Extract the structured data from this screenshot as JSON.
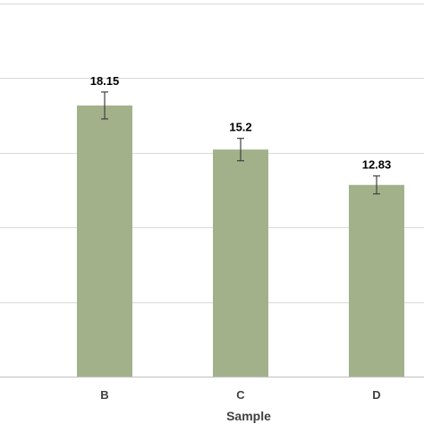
{
  "chart_data": {
    "type": "bar",
    "categories": [
      "B",
      "C",
      "D"
    ],
    "values": [
      18.15,
      15.2,
      12.83
    ],
    "errors": [
      0.9,
      0.75,
      0.6
    ],
    "data_labels": [
      "18.15",
      "15.2",
      "12.83"
    ],
    "title": "",
    "xlabel": "Sample",
    "ylabel": "",
    "ylim": [
      0,
      25
    ],
    "gridlines": [
      5,
      10,
      15,
      20,
      25
    ],
    "grid": true,
    "bar_color": "#a3b18a"
  }
}
